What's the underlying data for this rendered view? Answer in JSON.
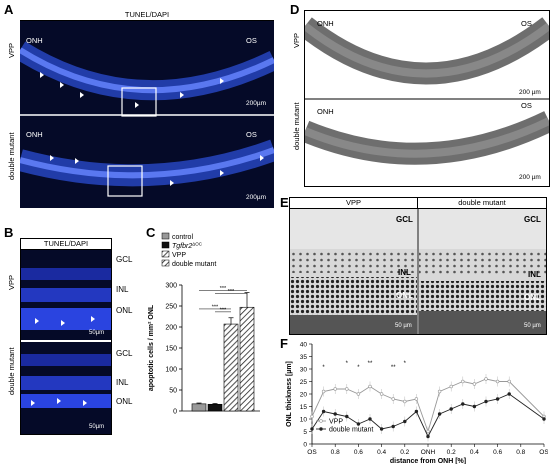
{
  "panels": {
    "A": {
      "letter": "A",
      "title": "TUNEL/DAPI",
      "rows": [
        "VPP",
        "double mutant"
      ],
      "onh": "ONH",
      "os": "OS",
      "scale": "200µm"
    },
    "B": {
      "letter": "B",
      "title": "TUNEL/DAPI",
      "rows": [
        "VPP",
        "double mutant"
      ],
      "layers_top": [
        "GCL",
        "INL",
        "ONL"
      ],
      "layers_bottom": [
        "GCL",
        "INL",
        "ONL"
      ],
      "scale": "50µm"
    },
    "C": {
      "letter": "C"
    },
    "D": {
      "letter": "D",
      "rows": [
        "VPP",
        "double mutant"
      ],
      "onh": "ONH",
      "os": "OS",
      "scale": "200 µm"
    },
    "E": {
      "letter": "E",
      "cols": [
        "VPP",
        "double mutant"
      ],
      "gcl": "GCL",
      "inl": "INL",
      "onl": "ONL",
      "scale": "50 µm"
    },
    "F": {
      "letter": "F"
    }
  },
  "chart_data": [
    {
      "type": "bar",
      "ylabel": "apoptotic cells / mm² ONL",
      "ylim": [
        0,
        300
      ],
      "yticks": [
        0,
        50,
        100,
        150,
        200,
        250,
        300
      ],
      "categories": [
        "control",
        "Tgfbr2ΔOC",
        "VPP",
        "double mutant"
      ],
      "values": [
        17,
        16,
        207,
        247
      ],
      "errors": [
        2,
        2,
        15,
        35
      ],
      "legend": [
        "control",
        "Tgfbr2",
        "VPP",
        "double mutant"
      ],
      "legend_sup": "ΔOC",
      "colors": [
        "#999999",
        "#111111",
        "#9a9a9a",
        "#e6e6e6"
      ],
      "significance": [
        "***",
        "***",
        "***",
        "***"
      ]
    },
    {
      "type": "line",
      "ylabel": "ONL thickness [µm]",
      "xlabel": "distance from ONH [%]",
      "xticks": [
        "OS",
        "0.8",
        "0.6",
        "0.4",
        "0.2",
        "ONH",
        "0.2",
        "0.4",
        "0.6",
        "0.8",
        "OS"
      ],
      "ylim": [
        0,
        40
      ],
      "yticks": [
        0,
        5,
        10,
        15,
        20,
        25,
        30,
        35,
        40
      ],
      "series": [
        {
          "name": "VPP",
          "marker": "circle-open",
          "values": [
            11,
            21,
            22,
            22,
            20,
            23,
            20,
            18,
            17,
            18,
            5,
            21,
            23,
            25,
            24,
            26,
            25,
            25,
            11
          ]
        },
        {
          "name": "double mutant",
          "marker": "circle-filled",
          "values": [
            6,
            13,
            12,
            11,
            8,
            10,
            6,
            7,
            9,
            13,
            3,
            12,
            14,
            16,
            15,
            17,
            18,
            20,
            10
          ]
        }
      ],
      "x_positions": [
        0,
        0.5,
        1,
        1.5,
        2,
        2.5,
        3,
        3.5,
        4,
        4.5,
        5,
        5.5,
        6,
        6.5,
        7,
        7.5,
        8,
        8.5,
        10
      ],
      "stars": [
        "*",
        "*",
        "*",
        "**",
        "**",
        "*"
      ]
    }
  ]
}
